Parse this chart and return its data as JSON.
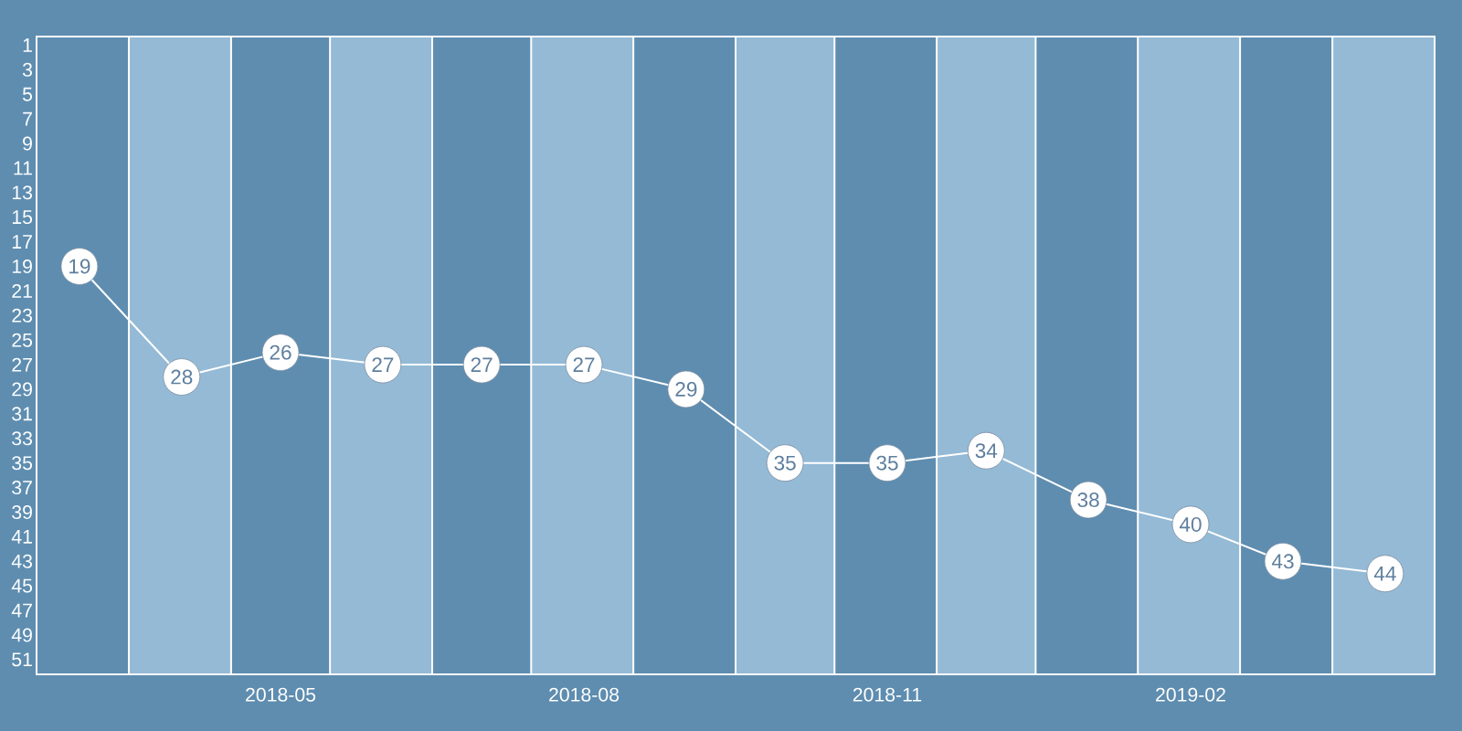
{
  "chart_data": {
    "type": "line",
    "x": [
      "2018-03",
      "2018-04",
      "2018-05",
      "2018-06",
      "2018-07",
      "2018-08",
      "2018-09",
      "2018-10",
      "2018-11",
      "2018-12",
      "2019-01",
      "2019-02",
      "2019-03",
      "2019-04"
    ],
    "values": [
      19,
      28,
      26,
      27,
      27,
      27,
      29,
      35,
      35,
      34,
      38,
      40,
      43,
      44
    ],
    "color": "#ffffff",
    "marker": "circle",
    "data_labels": true,
    "grid": false,
    "xlim": [
      "2018-02-16",
      "2019-04-16"
    ],
    "xticks": [
      "2018-05",
      "2018-08",
      "2018-11",
      "2019-02"
    ],
    "ylim": [
      52.2,
      0.3
    ],
    "yticks": [
      1,
      3,
      5,
      7,
      9,
      11,
      13,
      15,
      17,
      19,
      21,
      23,
      25,
      27,
      29,
      31,
      33,
      35,
      37,
      39,
      41,
      43,
      45,
      47,
      49,
      51
    ],
    "bands": [
      {
        "axis": "x",
        "from": "2018-03-16",
        "to": "2018-04-16",
        "color": "#94bad6"
      },
      {
        "axis": "x",
        "from": "2018-05-16",
        "to": "2018-06-16",
        "color": "#94bad6"
      },
      {
        "axis": "x",
        "from": "2018-07-16",
        "to": "2018-08-16",
        "color": "#94bad6"
      },
      {
        "axis": "x",
        "from": "2018-09-16",
        "to": "2018-10-16",
        "color": "#94bad6"
      },
      {
        "axis": "x",
        "from": "2018-11-16",
        "to": "2018-12-16",
        "color": "#94bad6"
      },
      {
        "axis": "x",
        "from": "2019-01-16",
        "to": "2019-02-16",
        "color": "#94bad6"
      },
      {
        "axis": "x",
        "from": "2019-03-16",
        "to": "2019-04-16",
        "color": "#94bad6"
      }
    ]
  }
}
